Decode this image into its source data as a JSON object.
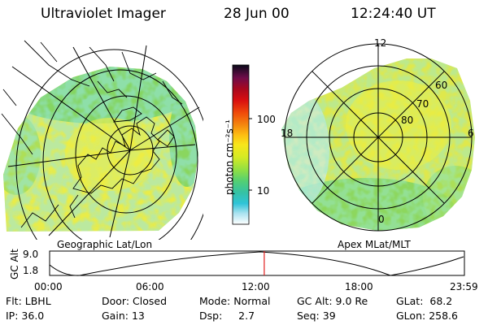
{
  "header": {
    "instrument": "Ultraviolet Imager",
    "date": "28 Jun 00",
    "time": "12:24:40 UT"
  },
  "left_panel": {
    "label": "Geographic Lat/Lon"
  },
  "right_panel": {
    "label": "Apex MLat/MLT",
    "mlt_labels": {
      "top": "12",
      "left": "18",
      "right": "6",
      "bottom": "0"
    },
    "mlat_labels": [
      "60",
      "70",
      "80"
    ]
  },
  "colorbar": {
    "unit_label": "photon cm⁻²s⁻¹",
    "ticks": [
      "100",
      "10"
    ],
    "colors": [
      "#ffffff",
      "#a8e2f0",
      "#2fc4d8",
      "#35c2a4",
      "#52cf74",
      "#8fdf44",
      "#d4ea24",
      "#f8e61a",
      "#fdbe12",
      "#f58a0e",
      "#ef4a0a",
      "#d80e10",
      "#a8081e",
      "#6e0c4a",
      "#2c0c42",
      "#0a0a1a"
    ]
  },
  "altitude_strip": {
    "axis_title": "GC Alt",
    "y_ticks": [
      "9.0",
      "1.8"
    ],
    "x_ticks": [
      "00:00",
      "06:00",
      "12:00",
      "18:00",
      "23:59"
    ],
    "current_time_hours": 12.41,
    "marker_color": "#e02020"
  },
  "status": {
    "row1": [
      {
        "label": "Flt:",
        "value": "LBHL"
      },
      {
        "label": "Door:",
        "value": "Closed"
      },
      {
        "label": "Mode:",
        "value": "Normal"
      },
      {
        "label": "GC Alt:",
        "value": "9.0 Re"
      },
      {
        "label": "GLat:",
        "value": "68.2"
      }
    ],
    "row2": [
      {
        "label": "IP:",
        "value": "36.0"
      },
      {
        "label": "Gain:",
        "value": "13"
      },
      {
        "label": "Dsp:",
        "value": "2.7"
      },
      {
        "label": "Seq:",
        "value": "39"
      },
      {
        "label": "GLon:",
        "value": "258.6"
      }
    ]
  },
  "palette": {
    "image_yellow": "#e8ec4a",
    "image_green": "#7fd462",
    "image_cyan": "#4cc8c8",
    "grid": "#000000"
  }
}
